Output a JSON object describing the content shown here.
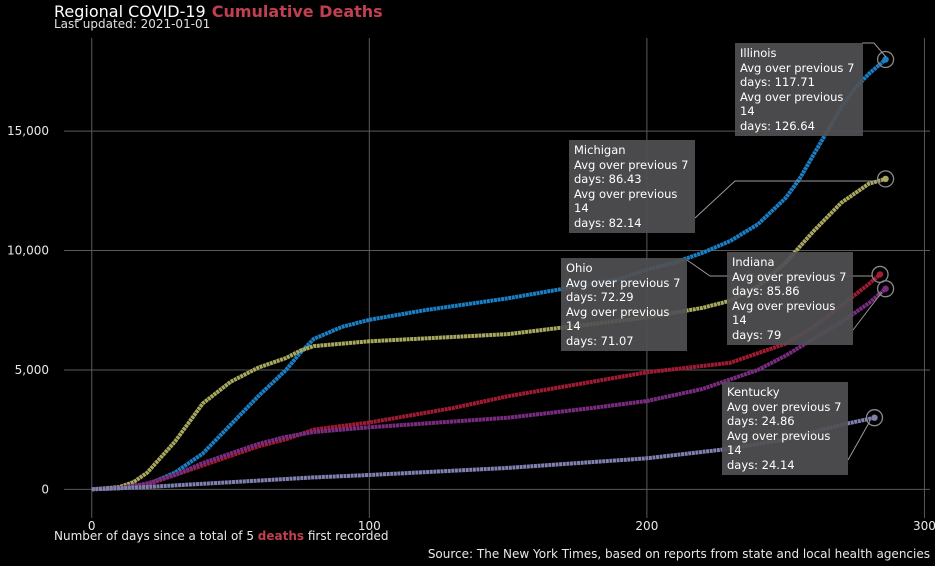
{
  "title": {
    "main": "Regional COVID-19",
    "accent": "Cumulative Deaths"
  },
  "subtitle": "Last updated: 2021-01-01",
  "xlabel": {
    "before": "Number of days since a total of 5",
    "accent": "deaths",
    "after": "first recorded"
  },
  "source": "Source: The New York Times, based on reports from state and local health agencies",
  "colors": {
    "background": "#000000",
    "grid": "#5a5a5a",
    "accent": "#c0404f",
    "tooltip_bg": "#505054"
  },
  "chart_data": {
    "type": "line",
    "xlim": [
      -10,
      302
    ],
    "ylim": [
      -1200,
      18900
    ],
    "xticks": [
      0,
      100,
      200,
      300
    ],
    "yticks": [
      0,
      5000,
      10000,
      15000
    ],
    "ytick_labels": [
      "0",
      "5,000",
      "10,000",
      "15,000"
    ],
    "xtick_labels": [
      "0",
      "100",
      "200",
      "300"
    ],
    "grid": true,
    "series": [
      {
        "name": "Illinois",
        "color": "#1a7fc4",
        "x": [
          0,
          10,
          20,
          30,
          40,
          50,
          60,
          70,
          75,
          80,
          90,
          100,
          120,
          150,
          170,
          190,
          200,
          210,
          220,
          230,
          240,
          250,
          255,
          260,
          265,
          270,
          275,
          280,
          286
        ],
        "y": [
          0,
          40,
          200,
          700,
          1500,
          2700,
          3900,
          5000,
          5700,
          6300,
          6800,
          7100,
          7500,
          8000,
          8400,
          8800,
          9200,
          9500,
          9900,
          10400,
          11100,
          12200,
          13000,
          14000,
          15000,
          16000,
          16800,
          17400,
          18000
        ],
        "tooltip": {
          "name": "Illinois",
          "l1": "Avg over previous 7",
          "l2": "days: 117.71",
          "l3": "Avg over previous 14",
          "l4": "days: 126.64"
        }
      },
      {
        "name": "Michigan",
        "color": "#a8a860",
        "x": [
          0,
          10,
          15,
          20,
          30,
          40,
          50,
          60,
          70,
          75,
          80,
          100,
          150,
          200,
          220,
          230,
          240,
          250,
          260,
          270,
          280,
          286
        ],
        "y": [
          0,
          100,
          300,
          700,
          2000,
          3600,
          4500,
          5100,
          5500,
          5800,
          6000,
          6200,
          6500,
          7200,
          7600,
          7900,
          8500,
          9500,
          10800,
          12000,
          12800,
          13000
        ],
        "tooltip": {
          "name": "Michigan",
          "l1": "Avg over previous 7",
          "l2": "days: 86.43",
          "l3": "Avg over previous 14",
          "l4": "days: 82.14"
        }
      },
      {
        "name": "Ohio",
        "color": "#a01c32",
        "x": [
          0,
          10,
          20,
          30,
          40,
          50,
          60,
          70,
          80,
          100,
          130,
          150,
          200,
          230,
          240,
          250,
          260,
          270,
          280,
          284
        ],
        "y": [
          0,
          50,
          200,
          600,
          1000,
          1400,
          1800,
          2100,
          2500,
          2800,
          3400,
          3900,
          4900,
          5300,
          5700,
          6100,
          6800,
          7700,
          8600,
          9000
        ],
        "tooltip": {
          "name": "Ohio",
          "l1": "Avg over previous 7",
          "l2": "days: 72.29",
          "l3": "Avg over previous 14",
          "l4": "days: 71.07"
        }
      },
      {
        "name": "Indiana",
        "color": "#7a2d80",
        "x": [
          0,
          10,
          20,
          30,
          40,
          50,
          60,
          70,
          80,
          100,
          150,
          180,
          200,
          220,
          240,
          250,
          260,
          270,
          280,
          286
        ],
        "y": [
          0,
          50,
          250,
          600,
          1100,
          1500,
          1900,
          2200,
          2400,
          2600,
          3000,
          3400,
          3700,
          4200,
          5000,
          5600,
          6300,
          7000,
          7800,
          8400
        ],
        "tooltip": {
          "name": "Indiana",
          "l1": "Avg over previous 7",
          "l2": "days: 85.86",
          "l3": "Avg over previous 14",
          "l4": "days: 79"
        }
      },
      {
        "name": "Kentucky",
        "color": "#8080b0",
        "x": [
          0,
          20,
          50,
          80,
          100,
          150,
          200,
          230,
          250,
          260,
          270,
          282
        ],
        "y": [
          0,
          100,
          300,
          500,
          600,
          900,
          1300,
          1700,
          2100,
          2400,
          2700,
          3000
        ],
        "tooltip": {
          "name": "Kentucky",
          "l1": "Avg over previous 7",
          "l2": "days: 24.86",
          "l3": "Avg over previous 14",
          "l4": "days: 24.14"
        }
      }
    ]
  }
}
